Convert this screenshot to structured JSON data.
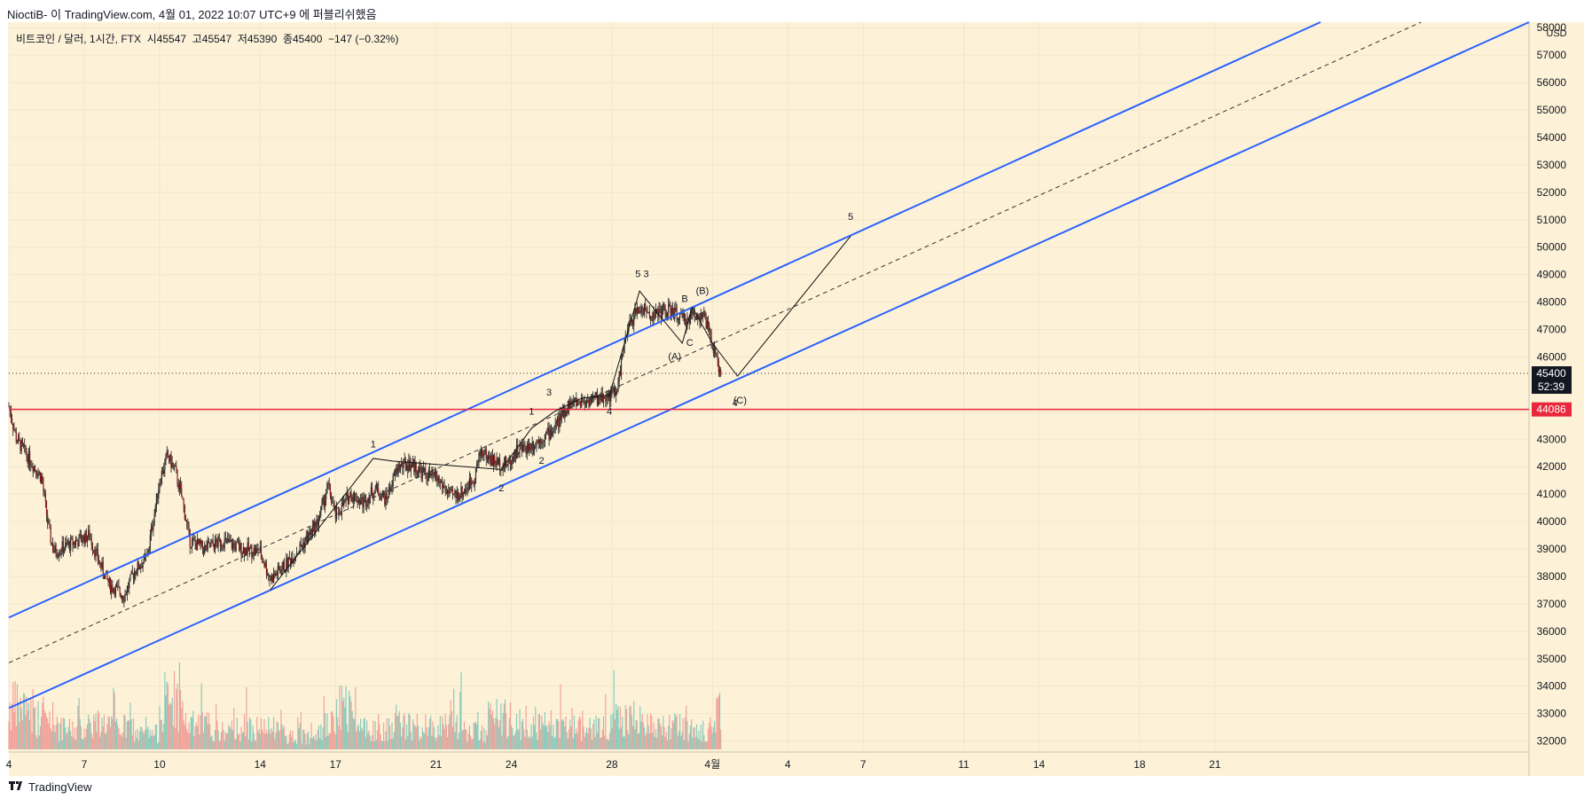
{
  "header": {
    "publish_line": "NioctiB- 이 TradingView.com, 4월 01, 2022 10:07 UTC+9 에 퍼블리쉬했음"
  },
  "legend": {
    "symbol": "비트코인 / 달러, 1시간, FTX",
    "open": "시45547",
    "high": "고45547",
    "low": "저45390",
    "close": "종45400",
    "change": "−147 (−0.32%)"
  },
  "footer": {
    "logo_icon": "tradingview-logo-icon",
    "brand": "TradingView"
  },
  "colors": {
    "background": "#fdf2d8",
    "channel": "#2962ff",
    "level": "#e8273c",
    "price_label": "#131722",
    "candle_up": "#2d2d2d",
    "candle_down": "#1a1a1a",
    "volume_up": "#7cc7b9",
    "volume_down": "#f09a94"
  },
  "chart_data": {
    "type": "candlestick",
    "symbol": "비트코인 / 달러, 1시간, FTX",
    "currency": "USD",
    "y_axis": {
      "unit_label": "USD",
      "ticks": [
        32000,
        33000,
        34000,
        35000,
        36000,
        37000,
        38000,
        39000,
        40000,
        41000,
        42000,
        43000,
        44000,
        46000,
        47000,
        48000,
        49000,
        50000,
        51000,
        52000,
        53000,
        54000,
        55000,
        56000,
        57000,
        58000
      ],
      "range": [
        31600,
        58200
      ]
    },
    "x_axis": {
      "ticks": [
        "4",
        "7",
        "10",
        "14",
        "17",
        "21",
        "24",
        "28",
        "4월",
        "4",
        "7",
        "11",
        "14",
        "18",
        "21"
      ],
      "tick_days": [
        0,
        3,
        6,
        10,
        13,
        17,
        20,
        24,
        28,
        31,
        34,
        38,
        41,
        45,
        48
      ],
      "range_days": [
        0,
        60.5
      ]
    },
    "current_price": {
      "value": 45400,
      "label": "45400",
      "countdown": "52:39"
    },
    "horizontal_level": {
      "value": 44086,
      "label": "44086"
    },
    "price_path": [
      [
        0,
        44200
      ],
      [
        0.3,
        43000
      ],
      [
        0.8,
        42300
      ],
      [
        1.3,
        41600
      ],
      [
        1.6,
        39600
      ],
      [
        1.8,
        38900
      ],
      [
        2.5,
        39200
      ],
      [
        3.2,
        39500
      ],
      [
        3.6,
        38500
      ],
      [
        4.0,
        37700
      ],
      [
        4.6,
        37300
      ],
      [
        5.0,
        38200
      ],
      [
        5.5,
        38700
      ],
      [
        6.0,
        41500
      ],
      [
        6.3,
        42400
      ],
      [
        6.6,
        41900
      ],
      [
        6.9,
        40800
      ],
      [
        7.2,
        39300
      ],
      [
        7.8,
        39000
      ],
      [
        8.5,
        39300
      ],
      [
        9.3,
        39000
      ],
      [
        10.0,
        38900
      ],
      [
        10.4,
        37900
      ],
      [
        11.0,
        38400
      ],
      [
        11.8,
        39300
      ],
      [
        12.3,
        40000
      ],
      [
        12.7,
        41300
      ],
      [
        13.0,
        40200
      ],
      [
        13.6,
        41000
      ],
      [
        14.1,
        40700
      ],
      [
        14.6,
        41200
      ],
      [
        15.0,
        40800
      ],
      [
        15.5,
        42000
      ],
      [
        16.0,
        42100
      ],
      [
        16.6,
        41700
      ],
      [
        17.0,
        41600
      ],
      [
        17.6,
        40900
      ],
      [
        18.1,
        41100
      ],
      [
        18.5,
        41600
      ],
      [
        18.8,
        42600
      ],
      [
        19.1,
        42300
      ],
      [
        19.5,
        42100
      ],
      [
        19.9,
        42100
      ],
      [
        20.2,
        42600
      ],
      [
        20.6,
        42700
      ],
      [
        21.0,
        42900
      ],
      [
        21.3,
        43100
      ],
      [
        21.6,
        43300
      ],
      [
        21.9,
        43700
      ],
      [
        22.3,
        44300
      ],
      [
        22.9,
        44400
      ],
      [
        23.5,
        44500
      ],
      [
        23.9,
        44600
      ],
      [
        24.2,
        44700
      ],
      [
        24.4,
        46000
      ],
      [
        24.7,
        47200
      ],
      [
        25.1,
        47800
      ],
      [
        25.6,
        47500
      ],
      [
        26.1,
        47700
      ],
      [
        26.5,
        47600
      ],
      [
        26.9,
        47300
      ],
      [
        27.3,
        47600
      ],
      [
        27.7,
        47400
      ],
      [
        28.0,
        46400
      ],
      [
        28.2,
        45700
      ],
      [
        28.35,
        45400
      ]
    ],
    "volume_profile": [
      [
        0,
        0.95
      ],
      [
        1,
        0.7
      ],
      [
        2,
        0.45
      ],
      [
        3,
        0.6
      ],
      [
        4,
        0.5
      ],
      [
        5,
        0.35
      ],
      [
        6,
        1.0
      ],
      [
        7,
        0.55
      ],
      [
        8,
        0.4
      ],
      [
        9,
        0.5
      ],
      [
        10,
        0.45
      ],
      [
        11,
        0.3
      ],
      [
        12,
        0.55
      ],
      [
        13,
        0.95
      ],
      [
        14,
        0.5
      ],
      [
        15,
        0.55
      ],
      [
        16,
        0.5
      ],
      [
        17,
        0.6
      ],
      [
        18,
        0.4
      ],
      [
        19,
        0.7
      ],
      [
        20,
        0.6
      ],
      [
        21,
        0.55
      ],
      [
        22,
        0.5
      ],
      [
        23,
        0.5
      ],
      [
        24,
        0.75
      ],
      [
        25,
        0.6
      ],
      [
        26,
        0.5
      ],
      [
        27,
        0.45
      ],
      [
        28,
        0.8
      ]
    ],
    "channel": {
      "upper": [
        [
          0,
          36500
        ],
        [
          52.2,
          58200
        ]
      ],
      "lower": [
        [
          0,
          33200
        ],
        [
          60.5,
          58200
        ]
      ],
      "middle_dashed": [
        [
          0,
          34850
        ],
        [
          56.2,
          58200
        ]
      ]
    },
    "wave_path": [
      [
        10.4,
        37500
      ],
      [
        14.5,
        42300
      ],
      [
        15.3,
        42200
      ],
      [
        19.6,
        41900
      ],
      [
        20.8,
        43400
      ],
      [
        21.7,
        44000
      ],
      [
        22.8,
        44500
      ],
      [
        23.9,
        44600
      ],
      [
        25.1,
        48400
      ],
      [
        26.8,
        46500
      ],
      [
        27.2,
        47800
      ],
      [
        28.0,
        46500
      ],
      [
        29.0,
        45300
      ],
      [
        33.5,
        50400
      ]
    ],
    "wave_labels": [
      {
        "text": "1",
        "day": 14.5,
        "price": 42700
      },
      {
        "text": "2",
        "day": 19.6,
        "price": 41100
      },
      {
        "text": "1",
        "day": 20.8,
        "price": 43900
      },
      {
        "text": "2",
        "day": 21.2,
        "price": 42100
      },
      {
        "text": "3",
        "day": 21.5,
        "price": 44600
      },
      {
        "text": "4",
        "day": 23.9,
        "price": 43900
      },
      {
        "text": "5 3",
        "day": 25.2,
        "price": 48900
      },
      {
        "text": "B",
        "day": 26.9,
        "price": 48000
      },
      {
        "text": "(B)",
        "day": 27.6,
        "price": 48300
      },
      {
        "text": "C",
        "day": 27.1,
        "price": 46400
      },
      {
        "text": "(A)",
        "day": 26.5,
        "price": 45900
      },
      {
        "text": "(C)",
        "day": 29.1,
        "price": 44300
      },
      {
        "text": "4",
        "day": 28.9,
        "price": 44200
      },
      {
        "text": "5",
        "day": 33.5,
        "price": 51000
      }
    ]
  }
}
